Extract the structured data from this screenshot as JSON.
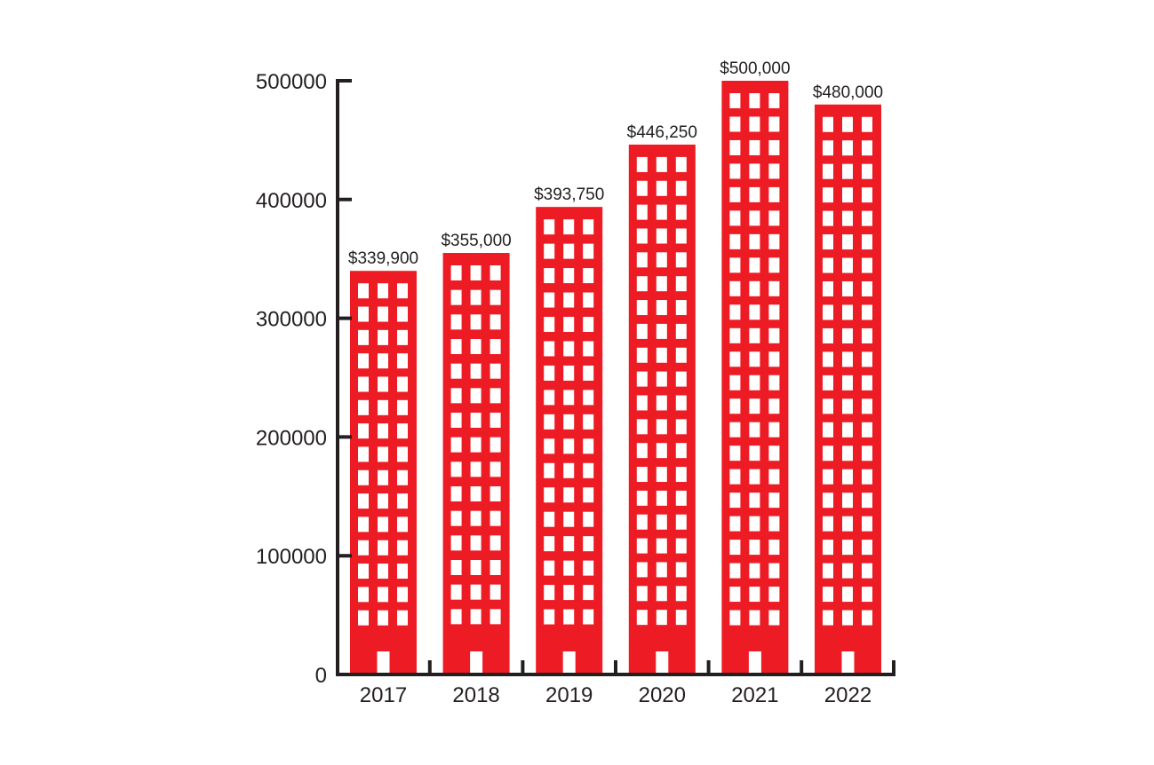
{
  "chart_data": {
    "type": "bar",
    "title": "",
    "xlabel": "",
    "ylabel": "",
    "categories": [
      "2017",
      "2018",
      "2019",
      "2020",
      "2021",
      "2022"
    ],
    "values": [
      339900,
      355000,
      393750,
      446250,
      500000,
      480000
    ],
    "data_labels": [
      "$339,900",
      "$355,000",
      "$393,750",
      "$446,250",
      "$500,000",
      "$480,000"
    ],
    "yticks": [
      "0",
      "100000",
      "200000",
      "300000",
      "400000",
      "500000"
    ],
    "ytick_values": [
      0,
      100000,
      200000,
      300000,
      400000,
      500000
    ],
    "ylim": [
      0,
      500000
    ],
    "grid": false,
    "legend": "none",
    "bar_style": "building-icon",
    "colors": {
      "bar": "#ed1c24",
      "window": "#ffffff",
      "axis": "#231f20",
      "text": "#231f20"
    }
  }
}
